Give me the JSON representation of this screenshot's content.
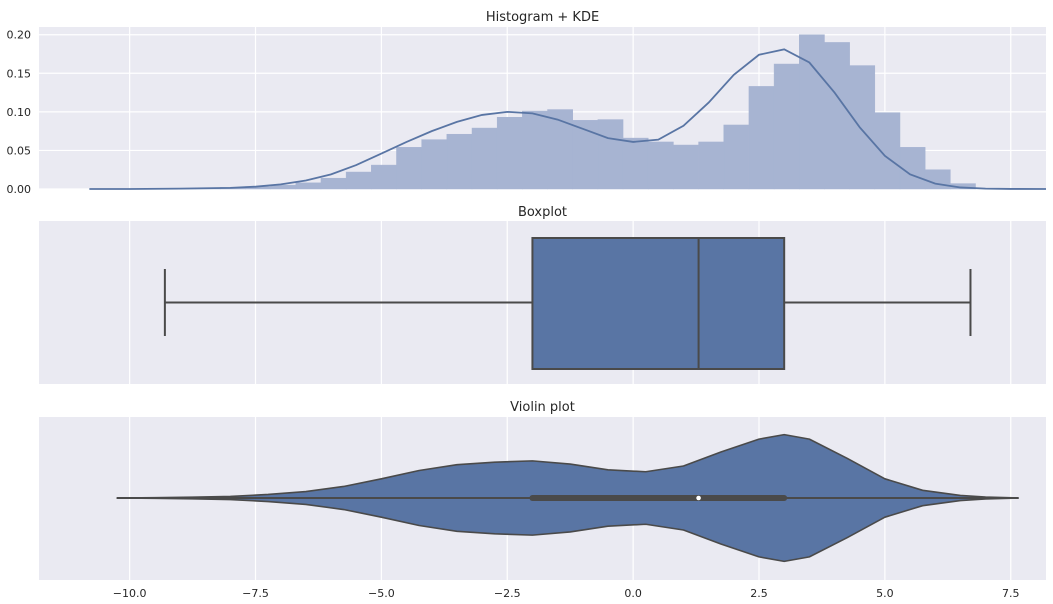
{
  "figure": {
    "background": "#ffffff",
    "axes_background": "#eaeaf2",
    "grid_color": "#ffffff",
    "accent": "#5975a4",
    "hist_fill": "#a7b4d2",
    "line_dark": "#4a4a4a"
  },
  "chart_data": [
    {
      "type": "bar",
      "title": "Histogram + KDE",
      "xlabel": "",
      "ylabel": "",
      "ylim": [
        0,
        0.21
      ],
      "grid": true,
      "yticks": [
        0.0,
        0.05,
        0.1,
        0.15,
        0.2
      ],
      "ytick_labels": [
        "0.00",
        "0.05",
        "0.10",
        "0.15",
        "0.20"
      ],
      "histogram": {
        "bin_edges": [
          -9.2,
          -8.7,
          -8.2,
          -7.7,
          -7.2,
          -6.7,
          -6.2,
          -5.7,
          -5.2,
          -4.7,
          -4.2,
          -3.7,
          -3.2,
          -2.7,
          -2.2,
          -1.7,
          -1.2,
          -0.7,
          -0.2,
          0.3,
          0.8,
          1.3,
          1.8,
          2.3,
          2.8,
          3.3,
          3.8,
          4.3,
          4.8,
          5.3,
          5.8,
          6.3,
          6.8
        ],
        "densities": [
          0.001,
          0.001,
          0.002,
          0.003,
          0.005,
          0.008,
          0.014,
          0.022,
          0.031,
          0.054,
          0.064,
          0.071,
          0.079,
          0.093,
          0.101,
          0.103,
          0.089,
          0.09,
          0.066,
          0.061,
          0.057,
          0.061,
          0.083,
          0.133,
          0.162,
          0.2,
          0.19,
          0.16,
          0.099,
          0.054,
          0.025,
          0.007
        ]
      },
      "kde": {
        "x": [
          -10.8,
          -10.0,
          -9.0,
          -8.0,
          -7.5,
          -7.0,
          -6.5,
          -6.0,
          -5.5,
          -5.0,
          -4.5,
          -4.0,
          -3.5,
          -3.0,
          -2.5,
          -2.0,
          -1.5,
          -1.0,
          -0.5,
          0.0,
          0.5,
          1.0,
          1.5,
          2.0,
          2.5,
          3.0,
          3.5,
          4.0,
          4.5,
          5.0,
          5.5,
          6.0,
          6.5,
          7.0,
          7.5,
          8.2
        ],
        "y": [
          0.0,
          0.0,
          0.0005,
          0.0015,
          0.003,
          0.006,
          0.011,
          0.019,
          0.031,
          0.046,
          0.061,
          0.075,
          0.087,
          0.096,
          0.1,
          0.098,
          0.09,
          0.078,
          0.066,
          0.061,
          0.064,
          0.082,
          0.112,
          0.148,
          0.174,
          0.181,
          0.164,
          0.125,
          0.08,
          0.043,
          0.019,
          0.007,
          0.002,
          0.0005,
          0.0001,
          0.0
        ]
      }
    },
    {
      "type": "box",
      "title": "Boxplot",
      "xlabel": "",
      "ylabel": "",
      "grid": true,
      "whisker_low": -9.3,
      "q1": -2.0,
      "median": 1.3,
      "q3": 3.0,
      "whisker_high": 6.7
    },
    {
      "type": "violin",
      "title": "Violin plot",
      "xlabel": "",
      "ylabel": "",
      "grid": true,
      "xlim": [
        -11.8,
        8.2
      ],
      "xticks": [
        -10.0,
        -7.5,
        -5.0,
        -2.5,
        0.0,
        2.5,
        5.0,
        7.5
      ],
      "xtick_labels": [
        "−10.0",
        "−7.5",
        "−5.0",
        "−2.5",
        "0.0",
        "2.5",
        "5.0",
        "7.5"
      ],
      "line_range": [
        -10.25,
        7.65
      ],
      "iqr": [
        -2.0,
        3.0
      ],
      "median": 1.3,
      "density": {
        "x": [
          -10.25,
          -9.5,
          -8.75,
          -8.0,
          -7.25,
          -6.5,
          -5.75,
          -5.0,
          -4.25,
          -3.5,
          -2.75,
          -2.0,
          -1.25,
          -0.5,
          0.25,
          1.0,
          1.75,
          2.5,
          3.0,
          3.5,
          4.25,
          5.0,
          5.75,
          6.5,
          7.0,
          7.65
        ],
        "half_width": [
          0.0,
          0.005,
          0.012,
          0.025,
          0.055,
          0.1,
          0.18,
          0.3,
          0.43,
          0.52,
          0.56,
          0.58,
          0.53,
          0.44,
          0.41,
          0.5,
          0.72,
          0.92,
          0.99,
          0.92,
          0.62,
          0.3,
          0.12,
          0.04,
          0.015,
          0.0
        ]
      }
    }
  ]
}
